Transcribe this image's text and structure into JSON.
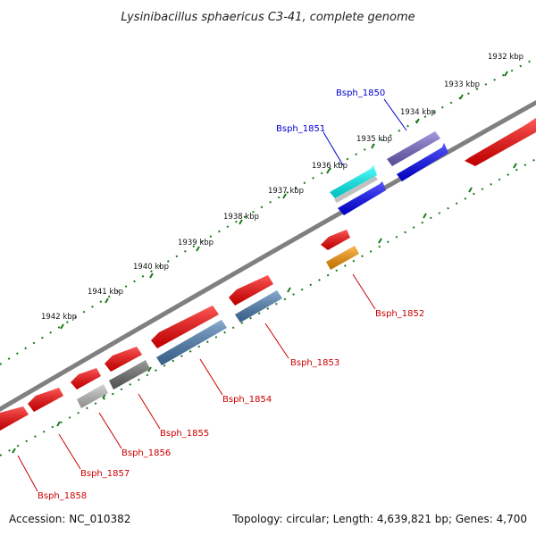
{
  "title": "Lysinibacillus sphaericus C3-41, complete genome",
  "footer": {
    "accession": "Accession: NC_010382",
    "summary": "Topology: circular; Length: 4,639,821 bp; Genes: 4,700"
  },
  "colors": {
    "forward_cds": "#ff0000",
    "reverse_cds": "#0000ff",
    "forward_label": "#0000cc",
    "reverse_label": "#cc0000",
    "backbone": "#808080",
    "tick": "#1a7a1a",
    "steel_blue": "#4a7fb5",
    "gray": "#6b6b6b",
    "light_gray": "#c0c0c0",
    "cyan": "#00ffff",
    "orange": "#ff9900",
    "purple": "#7766cc"
  },
  "tick_labels": [
    "1932 kbp",
    "1933 kbp",
    "1934 kbp",
    "1935 kbp",
    "1936 kbp",
    "1937 kbp",
    "1938 kbp",
    "1939 kbp",
    "1940 kbp",
    "1941 kbp",
    "1942 kbp"
  ],
  "gene_labels": [
    {
      "text": "Bsph_1850",
      "strand": "forward"
    },
    {
      "text": "Bsph_1851",
      "strand": "forward"
    },
    {
      "text": "Bsph_1852",
      "strand": "reverse"
    },
    {
      "text": "Bsph_1853",
      "strand": "reverse"
    },
    {
      "text": "Bsph_1854",
      "strand": "reverse"
    },
    {
      "text": "Bsph_1855",
      "strand": "reverse"
    },
    {
      "text": "Bsph_1856",
      "strand": "reverse"
    },
    {
      "text": "Bsph_1857",
      "strand": "reverse"
    },
    {
      "text": "Bsph_1858",
      "strand": "reverse"
    }
  ],
  "features": [
    {
      "lane": "forward-outer",
      "color": "#7766cc"
    },
    {
      "lane": "forward-inner",
      "color": "#0000ff"
    },
    {
      "lane": "forward-outer",
      "color": "#00ffff"
    },
    {
      "lane": "forward-inner",
      "color": "#0000ff"
    },
    {
      "lane": "reverse-inner",
      "color": "#ff0000"
    },
    {
      "lane": "reverse-inner",
      "color": "#ff0000"
    },
    {
      "lane": "reverse-inner",
      "color": "#ff0000"
    },
    {
      "lane": "reverse-inner",
      "color": "#ff0000"
    },
    {
      "lane": "reverse-inner",
      "color": "#ff0000"
    },
    {
      "lane": "reverse-inner",
      "color": "#ff0000"
    },
    {
      "lane": "reverse-inner",
      "color": "#ff0000"
    },
    {
      "lane": "reverse-outer",
      "color": "#ff9900"
    },
    {
      "lane": "reverse-outer",
      "color": "#4a7fb5"
    },
    {
      "lane": "reverse-outer",
      "color": "#4a7fb5"
    },
    {
      "lane": "reverse-outer",
      "color": "#6b6b6b"
    },
    {
      "lane": "reverse-outer",
      "color": "#c0c0c0"
    }
  ]
}
